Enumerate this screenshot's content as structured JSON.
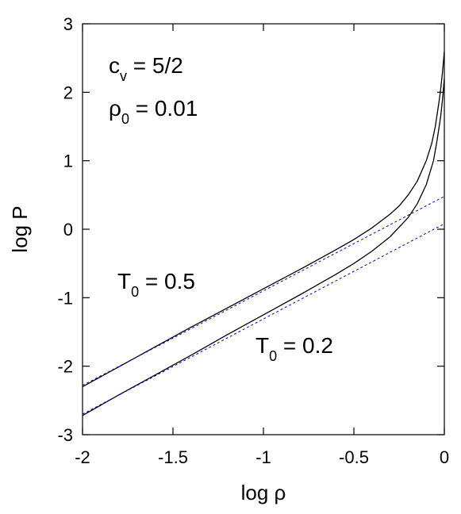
{
  "chart_data": {
    "type": "line",
    "xlabel": "log ρ",
    "ylabel": "log P",
    "xlim": [
      -2,
      0
    ],
    "ylim": [
      -3,
      3
    ],
    "x_ticks": [
      "-2",
      "-1.5",
      "-1",
      "-0.5",
      "0"
    ],
    "y_ticks": [
      "3",
      "2",
      "1",
      "0",
      "-1",
      "-2",
      "-3"
    ],
    "grid": false,
    "legend": "none",
    "annotations": {
      "cv": {
        "main": "c",
        "sub": "v",
        "rest": " = 5/2"
      },
      "rho0": {
        "main": "ρ",
        "sub": "0",
        "rest": " = 0.01"
      },
      "t05": {
        "main": "T",
        "sub": "0",
        "rest": " = 0.5"
      },
      "t02": {
        "main": "T",
        "sub": "0",
        "rest": " = 0.2"
      }
    },
    "series": [
      {
        "style": "solid",
        "color": "#000000",
        "x": [
          -2,
          -1.8,
          -1.6,
          -1.4,
          -1.2,
          -1.0,
          -0.8,
          -0.6,
          -0.5,
          -0.4,
          -0.3,
          -0.25,
          -0.2,
          -0.15,
          -0.1,
          -0.07,
          -0.05,
          -0.03,
          -0.02,
          -0.01,
          0
        ],
        "y": [
          -2.3,
          -2.01,
          -1.72,
          -1.43,
          -1.15,
          -0.87,
          -0.59,
          -0.3,
          -0.15,
          0.02,
          0.22,
          0.34,
          0.5,
          0.7,
          1.0,
          1.25,
          1.5,
          1.85,
          2.05,
          2.3,
          2.6
        ]
      },
      {
        "style": "solid",
        "color": "#000000",
        "x": [
          -2,
          -1.8,
          -1.6,
          -1.4,
          -1.2,
          -1.0,
          -0.8,
          -0.6,
          -0.5,
          -0.4,
          -0.3,
          -0.2,
          -0.15,
          -0.1,
          -0.06,
          -0.04,
          -0.02,
          -0.01,
          0
        ],
        "y": [
          -2.72,
          -2.42,
          -2.13,
          -1.84,
          -1.54,
          -1.25,
          -0.96,
          -0.66,
          -0.5,
          -0.32,
          -0.11,
          0.17,
          0.37,
          0.65,
          1.0,
          1.3,
          1.65,
          1.9,
          2.2
        ]
      },
      {
        "style": "dashed",
        "color": "#0000cc",
        "x": [
          -2,
          0
        ],
        "y": [
          -2.28,
          0.48
        ]
      },
      {
        "style": "dashed",
        "color": "#0000cc",
        "x": [
          -2,
          0
        ],
        "y": [
          -2.7,
          0.08
        ]
      }
    ]
  }
}
